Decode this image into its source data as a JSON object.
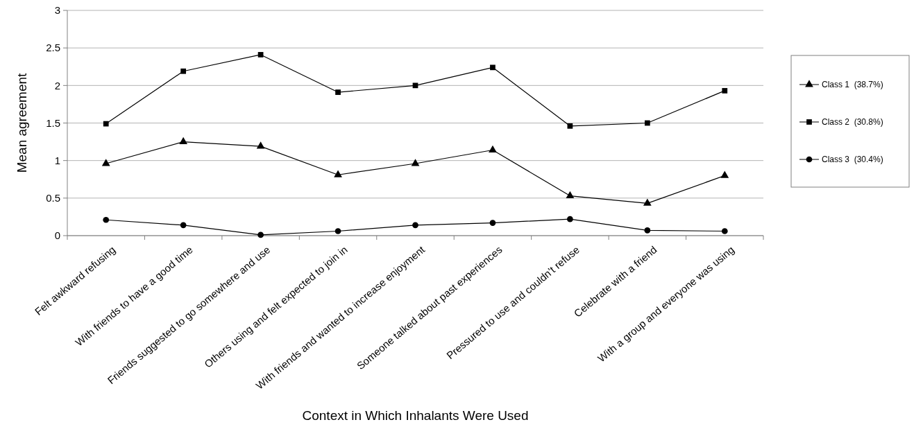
{
  "chart_data": {
    "type": "line",
    "xlabel": "Context in Which Inhalants Were Used",
    "ylabel": "Mean agreement",
    "categories": [
      "Felt awkward refusing",
      "With friends to have a good time",
      "Friends suggested to go somewhere and use",
      "Others using and felt expected to join in",
      "With friends and wanted to increase enjoyment",
      "Someone talked about past experiences",
      "Pressured to use and couldn’t refuse",
      "Celebrate with a friend",
      "With a group and everyone was using"
    ],
    "series": [
      {
        "name": "Class 1  (38.7%)",
        "color": "#000000",
        "marker": "triangle",
        "values": [
          0.96,
          1.25,
          1.19,
          0.81,
          0.96,
          1.14,
          0.53,
          0.43,
          0.8
        ]
      },
      {
        "name": "Class 2  (30.8%)",
        "color": "#000000",
        "marker": "square",
        "values": [
          1.49,
          2.19,
          2.41,
          1.91,
          2.0,
          2.24,
          1.46,
          1.5,
          1.93
        ]
      },
      {
        "name": "Class 3  (30.4%)",
        "color": "#000000",
        "marker": "circle",
        "values": [
          0.21,
          0.14,
          0.01,
          0.06,
          0.14,
          0.17,
          0.22,
          0.07,
          0.06
        ]
      }
    ],
    "ylim": [
      0,
      3
    ],
    "yticks": [
      0,
      0.5,
      1,
      1.5,
      2,
      2.5,
      3
    ],
    "grid": "y",
    "legend": "right",
    "line_style": "solid"
  }
}
